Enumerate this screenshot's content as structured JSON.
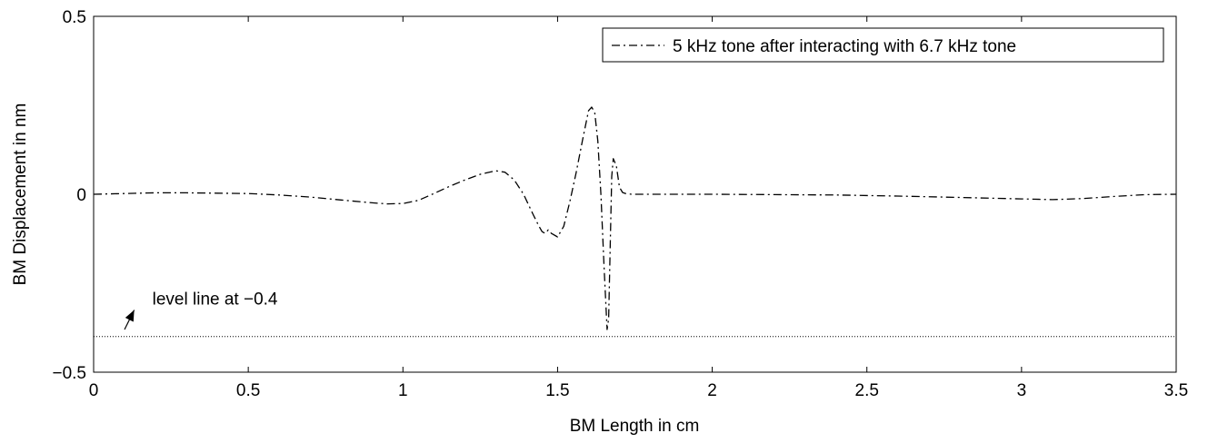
{
  "chart_data": {
    "type": "line",
    "xlabel": "BM Length in cm",
    "ylabel": "BM Displacement in nm",
    "xlim": [
      0,
      3.5
    ],
    "ylim": [
      -0.5,
      0.5
    ],
    "x_ticks": [
      0,
      0.5,
      1,
      1.5,
      2,
      2.5,
      3,
      3.5
    ],
    "y_ticks": [
      -0.5,
      0,
      0.5
    ],
    "x_tick_labels": [
      "0",
      "0.5",
      "1",
      "1.5",
      "2",
      "2.5",
      "3",
      "3.5"
    ],
    "y_tick_labels": [
      "−0.5",
      "0",
      "0.5"
    ],
    "grid": false,
    "legend_position": "top-right",
    "series": [
      {
        "name": "5 kHz tone after interacting with 6.7 kHz tone",
        "line_style": "dash-dot",
        "color": "#000000",
        "x": [
          0,
          0.1,
          0.2,
          0.3,
          0.4,
          0.5,
          0.6,
          0.7,
          0.8,
          0.9,
          0.95,
          1.0,
          1.05,
          1.1,
          1.15,
          1.2,
          1.25,
          1.3,
          1.33,
          1.36,
          1.39,
          1.42,
          1.44,
          1.45,
          1.46,
          1.47,
          1.48,
          1.5,
          1.52,
          1.54,
          1.56,
          1.58,
          1.6,
          1.61,
          1.62,
          1.63,
          1.64,
          1.65,
          1.66,
          1.665,
          1.67,
          1.675,
          1.68,
          1.69,
          1.7,
          1.71,
          1.72,
          1.74,
          1.8,
          2.0,
          2.2,
          2.4,
          2.6,
          2.8,
          3.0,
          3.1,
          3.2,
          3.3,
          3.4,
          3.5
        ],
        "y": [
          0.0,
          0.002,
          0.004,
          0.004,
          0.003,
          0.002,
          -0.002,
          -0.008,
          -0.016,
          -0.024,
          -0.027,
          -0.026,
          -0.017,
          0.002,
          0.022,
          0.04,
          0.056,
          0.066,
          0.062,
          0.04,
          0.0,
          -0.055,
          -0.09,
          -0.105,
          -0.11,
          -0.1,
          -0.11,
          -0.12,
          -0.09,
          -0.02,
          0.06,
          0.15,
          0.235,
          0.245,
          0.23,
          0.15,
          0.0,
          -0.2,
          -0.38,
          -0.35,
          -0.15,
          0.05,
          0.1,
          0.08,
          0.02,
          0.005,
          0.002,
          0.0,
          0.0,
          0.0,
          -0.001,
          -0.002,
          -0.005,
          -0.009,
          -0.013,
          -0.015,
          -0.012,
          -0.006,
          -0.001,
          0.0
        ]
      },
      {
        "name": "",
        "line_style": "dotted",
        "color": "#000000",
        "x": [
          0,
          3.5
        ],
        "y": [
          -0.4,
          -0.4
        ]
      }
    ],
    "annotations": [
      {
        "text": "level line at −0.4",
        "arrow_to": [
          0.1,
          -0.38
        ],
        "text_at": [
          0.19,
          -0.31
        ]
      }
    ]
  }
}
